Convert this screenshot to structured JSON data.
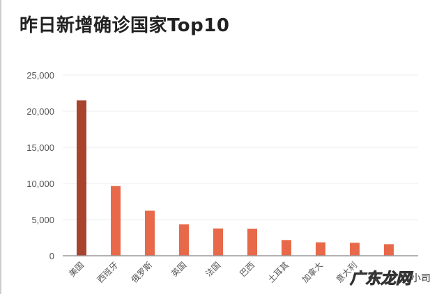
{
  "chart_data": {
    "type": "bar",
    "title": "昨日新增确诊国家Top10",
    "categories": [
      "美国",
      "西班牙",
      "俄罗斯",
      "英国",
      "法国",
      "巴西",
      "土耳其",
      "加拿大",
      "意大利",
      ""
    ],
    "values": [
      21500,
      9640,
      6250,
      4360,
      3780,
      3750,
      2180,
      1860,
      1800,
      1600
    ],
    "ylim": [
      0,
      25000
    ],
    "yticks": [
      "0",
      "5,000",
      "10,000",
      "15,000",
      "20,000",
      "25,000"
    ],
    "grid": true,
    "colors": {
      "highlight": "#a8442e",
      "bar": "#e8694a",
      "grid": "#eeeeee",
      "axis": "#999999"
    }
  },
  "watermark": {
    "main": "广东龙网",
    "sub": "小司"
  }
}
